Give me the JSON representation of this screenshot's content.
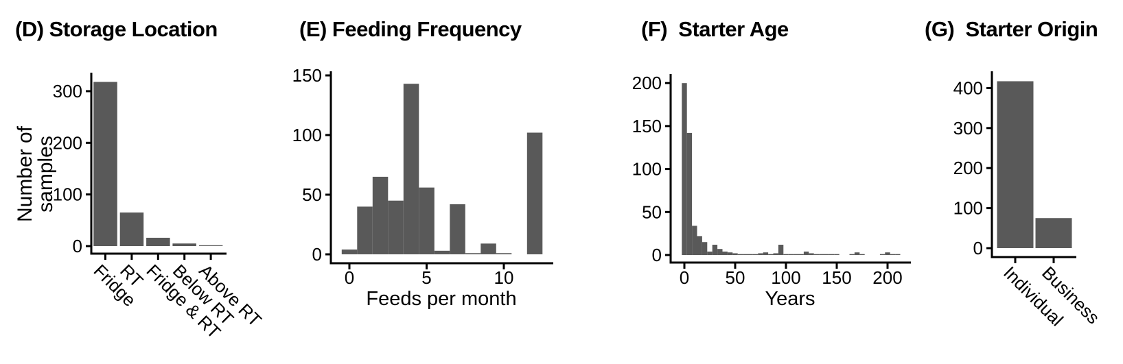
{
  "figure": {
    "background": "#ffffff",
    "bar_color": "#595959",
    "axis_color": "#000000",
    "text_color": "#000000"
  },
  "chart_data": [
    {
      "panel": "D",
      "type": "bar",
      "title": "(D) Storage Location",
      "ylabel": "Number of samples",
      "xlabel": "",
      "categories": [
        "Fridge",
        "RT",
        "Fridge & RT",
        "Below RT",
        "Above RT"
      ],
      "values": [
        318,
        65,
        16,
        5,
        1
      ],
      "yticks": [
        0,
        100,
        200,
        300
      ],
      "ylim": [
        0,
        336
      ],
      "xtick_angle": 45,
      "grid": false,
      "legend": "none"
    },
    {
      "panel": "E",
      "type": "bar",
      "subtype": "histogram",
      "title": "(E) Feeding Frequency",
      "xlabel": "Feeds per month",
      "ylabel": "",
      "bin_width": 1,
      "bin_centers": [
        0,
        1,
        2,
        3,
        4,
        5,
        6,
        7,
        8,
        9,
        10,
        11,
        12
      ],
      "values": [
        4,
        40,
        65,
        45,
        143,
        56,
        3,
        42,
        1,
        9,
        1,
        0,
        102
      ],
      "xticks": [
        0,
        5,
        10
      ],
      "yticks": [
        0,
        50,
        100,
        150
      ],
      "ylim": [
        0,
        152
      ],
      "grid": false,
      "legend": "none"
    },
    {
      "panel": "F",
      "type": "bar",
      "subtype": "histogram",
      "title": "(F)  Starter Age",
      "xlabel": "Years",
      "ylabel": "",
      "bin_width": 5,
      "bin_centers": [
        0,
        5,
        10,
        15,
        20,
        25,
        30,
        35,
        40,
        45,
        50,
        55,
        60,
        65,
        70,
        75,
        80,
        85,
        90,
        95,
        100,
        105,
        110,
        115,
        120,
        125,
        130,
        135,
        140,
        145,
        150,
        155,
        160,
        165,
        170,
        175,
        180,
        185,
        190,
        195,
        200,
        205,
        210
      ],
      "values": [
        200,
        142,
        34,
        22,
        15,
        4,
        12,
        7,
        4,
        3,
        2,
        1,
        1,
        1,
        1,
        2,
        3,
        1,
        2,
        12,
        1,
        1,
        1,
        1,
        4,
        2,
        1,
        1,
        1,
        1,
        1,
        0,
        0,
        1,
        3,
        1,
        0,
        0,
        0,
        1,
        3,
        1,
        1
      ],
      "xticks": [
        0,
        50,
        100,
        150,
        200
      ],
      "yticks": [
        0,
        50,
        100,
        150,
        200
      ],
      "ylim": [
        0,
        210
      ],
      "grid": false,
      "legend": "none"
    },
    {
      "panel": "G",
      "type": "bar",
      "title": "(G)  Starter Origin",
      "ylabel": "",
      "xlabel": "",
      "categories": [
        "Individual",
        "Business"
      ],
      "values": [
        417,
        75
      ],
      "yticks": [
        0,
        100,
        200,
        300,
        400
      ],
      "ylim": [
        0,
        440
      ],
      "xtick_angle": 45,
      "grid": false,
      "legend": "none"
    }
  ]
}
